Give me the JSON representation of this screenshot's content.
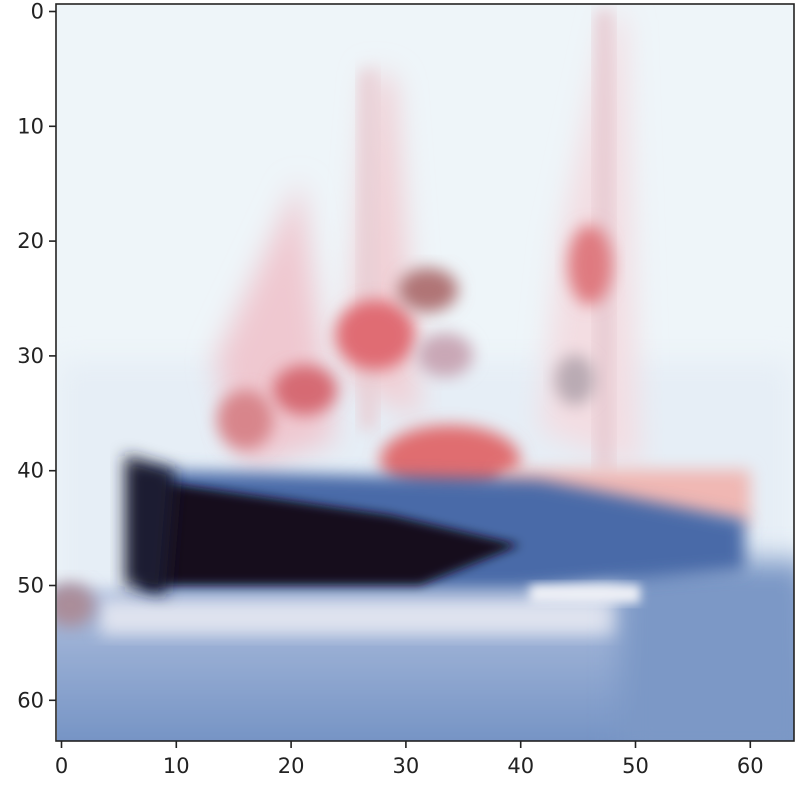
{
  "figure": {
    "type": "image-plot",
    "subject": "blurred low-resolution photo of a boat with red-and-white sails on blue water",
    "x_ticks": [
      "0",
      "10",
      "20",
      "30",
      "40",
      "50",
      "60"
    ],
    "y_ticks": [
      "0",
      "10",
      "20",
      "30",
      "40",
      "50",
      "60"
    ],
    "x_range": [
      0,
      64
    ],
    "y_range": [
      0,
      64
    ],
    "y_axis_inverted": true,
    "colors": {
      "sky": "#eef5f9",
      "water": "#6f8fbf",
      "hull_dark": "#120d18",
      "hull_blue": "#4467a8",
      "sail_red": "#e07a80",
      "sail_light": "#f2d4d8",
      "axis": "#222222"
    }
  }
}
